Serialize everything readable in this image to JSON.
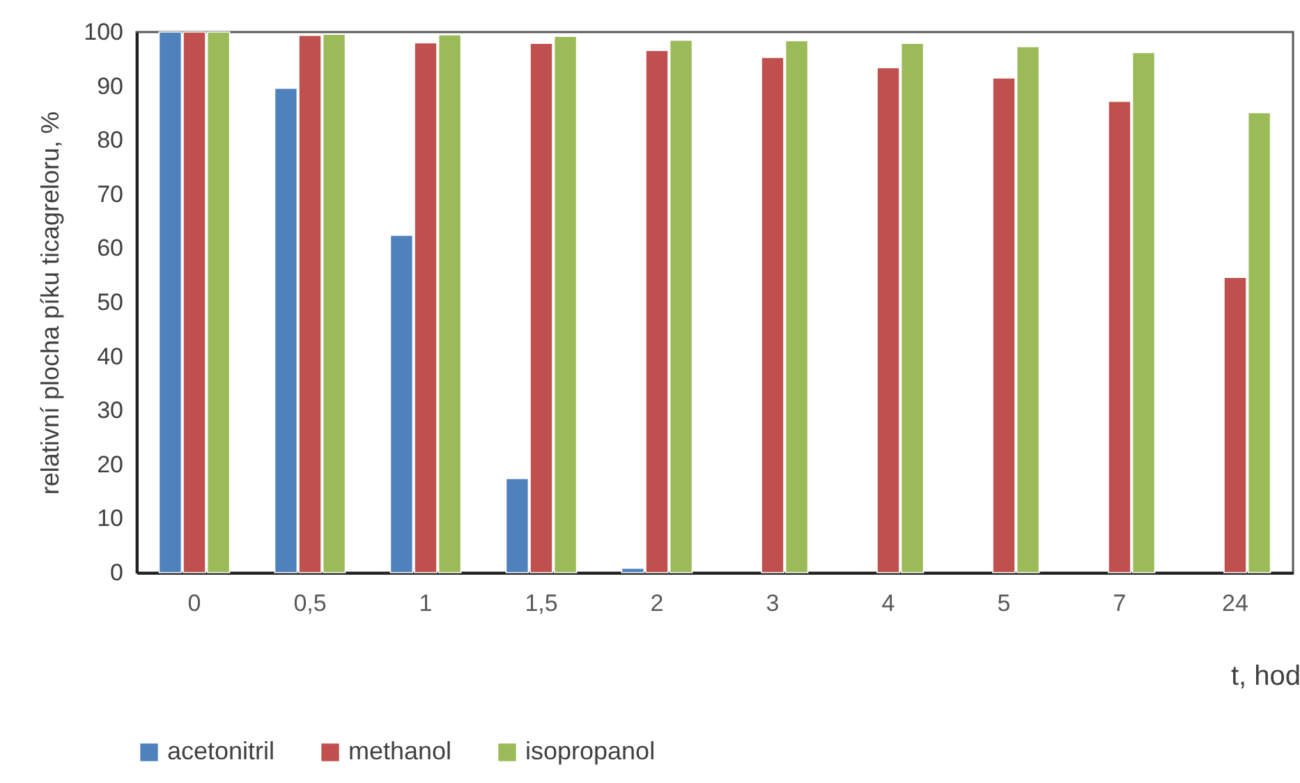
{
  "chart_data": {
    "type": "bar",
    "ylabel": "relativní plocha píku ticagreloru, %",
    "xlabel": "t, hod",
    "categories": [
      "0",
      "0,5",
      "1",
      "1,5",
      "2",
      "3",
      "4",
      "5",
      "7",
      "24"
    ],
    "series": [
      {
        "name": "acetonitril",
        "color": "#4f81bd",
        "values": [
          100,
          89.6,
          62.4,
          17.4,
          0.8,
          null,
          null,
          null,
          null,
          null
        ]
      },
      {
        "name": "methanol",
        "color": "#c0504d",
        "values": [
          100,
          99.4,
          98.0,
          97.9,
          96.6,
          95.3,
          93.4,
          91.5,
          87.2,
          54.6
        ]
      },
      {
        "name": "isopropanol",
        "color": "#9bbb59",
        "values": [
          100,
          99.6,
          99.5,
          99.2,
          98.5,
          98.4,
          97.9,
          97.3,
          96.2,
          85.1
        ]
      }
    ],
    "ylim": [
      0,
      100
    ],
    "yticks": [
      0,
      10,
      20,
      30,
      40,
      50,
      60,
      70,
      80,
      90,
      100
    ],
    "grid": false,
    "legend": "bottom"
  }
}
